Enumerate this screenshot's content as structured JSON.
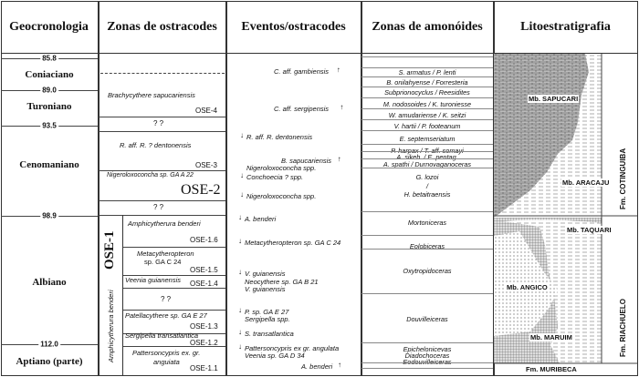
{
  "headers": [
    "Geocronologia",
    "Zonas de ostracodes",
    "Eventos/ostracodes",
    "Zonas de amonóides",
    "Litoestratigrafia"
  ],
  "ages": [
    "85.8",
    "89.0",
    "93.5",
    "98.9",
    "112.0"
  ],
  "stages": [
    "Coniaciano",
    "Turoniano",
    "Cenomaniano",
    "Albiano",
    "Aptiano (parte)"
  ],
  "ostracod_zones": {
    "ose4_species": "Brachycythere sapucariensis",
    "ose4": "OSE-4",
    "q1": "? ?",
    "ose3_species": "R. aff. R. ? dentonensis",
    "ose3": "OSE-3",
    "ose2_species": "Nigeroloxoconcha sp. GA A 22",
    "ose2": "OSE-2",
    "q2": "? ?",
    "ose1": "OSE-1",
    "ose1_species": "Amphicytherura benderi",
    "ose16_species": "Amphicytherura benderi",
    "ose16": "OSE-1.6",
    "ose15_species_a": "Metacytheropteron",
    "ose15_species_b": "sp. GA C 24",
    "ose15": "OSE-1.5",
    "ose14_species": "Veenia guianensis",
    "ose14": "OSE-1.4",
    "q3": "? ?",
    "ose13_species": "Patellacythere sp. GA E 27",
    "ose13": "OSE-1.3",
    "ose12_species": "Sergipella transatlantica",
    "ose12": "OSE-1.2",
    "ose11_species_a": "Pattersoncypris ex. gr.",
    "ose11_species_b": "anguiata",
    "ose11": "OSE-1.1"
  },
  "events": [
    "C. aff. gambiensis",
    "C. aff. sergipensis",
    "R. aff. R. dentonensis",
    "B. sapucariensis",
    "Nigeroloxoconcha spp.",
    "Conchoecia ? spp.",
    "Nigeroloxoconcha spp.",
    "A. benderi",
    "Metacytheropteron sp. GA C 24",
    "V. guianensis",
    "Neocythere sp. GA B 21",
    "V. guianensis",
    "P. sp. GA E 27",
    "Sergipella spp.",
    "S. transatlantica",
    "Pattersoncypris ex gr. angulata",
    "Veenia sp. GA D 34",
    "A. benderi"
  ],
  "ammonites": [
    "S. armatus / P. lenti",
    "B. onilahyense / Forresteria",
    "Subprionocyclus / Reesidites",
    "M. nodosoides / K. turoniesse",
    "W. amudariense / K. seitzi",
    "V. hartii / P. footeanum",
    "E. septemseriatum",
    "P. harpax / T. aff. somayi",
    "A. sikeb. / E. pentag.",
    "A. spathi / Durnovaganoceras",
    "G. lozoi",
    "/",
    "H. betaitraensis",
    "Mortoniceras",
    "Eolobiceras",
    "Oxytropidoceras",
    "Douvilleiceras",
    "Epichelonicevas",
    "Diadochoceras",
    "Eodouvilleiceras"
  ],
  "lithostratigraphy": {
    "members": [
      "Mb. SAPUCARI",
      "Mb. ARACAJU",
      "Mb. TAQUARI",
      "Mb. ANGICO",
      "Mb. MARUIM"
    ],
    "formations": [
      "Fm. COTINGUIBA",
      "Fm. RIACHUELO",
      "Fm. MURIBECA"
    ]
  }
}
